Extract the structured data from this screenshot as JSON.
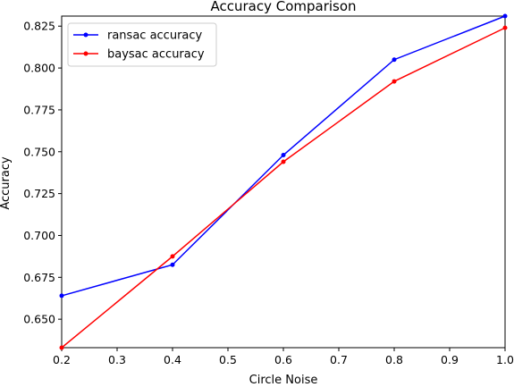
{
  "chart_data": {
    "type": "line",
    "title": "Accuracy Comparison",
    "xlabel": "Circle Noise",
    "ylabel": "Accuracy",
    "xlim": [
      0.2,
      1.0
    ],
    "ylim": [
      0.633,
      0.831
    ],
    "x_ticks": [
      "0.2",
      "0.3",
      "0.4",
      "0.5",
      "0.6",
      "0.7",
      "0.8",
      "0.9",
      "1.0"
    ],
    "y_ticks": [
      "0.650",
      "0.675",
      "0.700",
      "0.725",
      "0.750",
      "0.775",
      "0.800",
      "0.825"
    ],
    "grid": false,
    "legend_position": "top-left",
    "x": [
      0.2,
      0.4,
      0.6,
      0.8,
      1.0
    ],
    "series": [
      {
        "name": "ransac accuracy",
        "color": "#0000ff",
        "values": [
          0.664,
          0.6825,
          0.748,
          0.805,
          0.831
        ]
      },
      {
        "name": "baysac accuracy",
        "color": "#ff0000",
        "values": [
          0.633,
          0.6875,
          0.744,
          0.792,
          0.824
        ]
      }
    ]
  }
}
